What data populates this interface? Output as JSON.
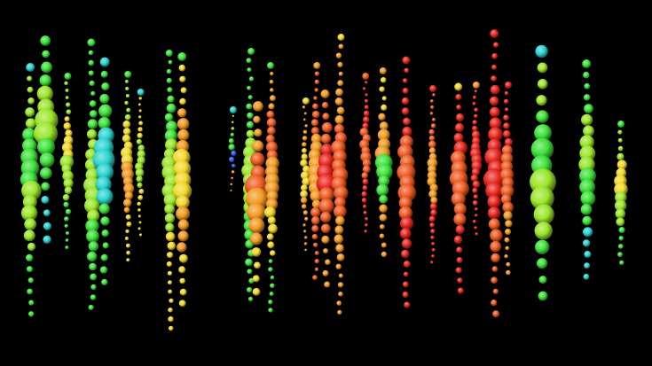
{
  "image": {
    "background": "#000000",
    "palette": {
      "cyan": "#2ad4d0",
      "green": "#3ee23a",
      "yellow_green": "#9be62a",
      "yellow": "#f2d82a",
      "orange": "#f29a22",
      "red_orange": "#ee5a22",
      "red": "#e8261e",
      "blue": "#2a5ae8"
    },
    "strings": [
      {
        "top_color": "cyan",
        "colors": [
          "yellow_green",
          "green",
          "yellow_green",
          "green"
        ]
      },
      {
        "top_color": "green",
        "colors": [
          "green",
          "yellow_green",
          "green",
          "cyan"
        ]
      },
      {
        "top_color": "green",
        "colors": [
          "yellow_green",
          "yellow",
          "yellow_green",
          "green"
        ]
      },
      {
        "top_color": "green",
        "colors": [
          "green",
          "yellow_green",
          "green"
        ]
      },
      {
        "top_color": "cyan",
        "colors": [
          "green",
          "cyan",
          "green"
        ]
      },
      {
        "top_color": "green",
        "colors": [
          "yellow_green",
          "yellow",
          "orange",
          "yellow"
        ]
      },
      {
        "top_color": "cyan",
        "colors": [
          "yellow",
          "yellow_green",
          "yellow"
        ]
      },
      {
        "top_color": "green",
        "colors": [
          "green",
          "yellow_green",
          "yellow"
        ]
      },
      {
        "top_color": "green",
        "colors": [
          "yellow",
          "orange",
          "yellow",
          "orange",
          "yellow"
        ]
      },
      {
        "top_color": "cyan",
        "colors": [
          "yellow_green",
          "green",
          "blue",
          "orange"
        ]
      },
      {
        "top_color": "green",
        "colors": [
          "green",
          "yellow_green",
          "green"
        ]
      },
      {
        "top_color": "orange",
        "colors": [
          "orange",
          "red_orange",
          "orange",
          "yellow"
        ]
      },
      {
        "top_color": "green",
        "colors": [
          "orange",
          "red_orange",
          "orange",
          "yellow",
          "green"
        ]
      },
      {
        "top_color": "yellow",
        "colors": [
          "orange",
          "yellow",
          "orange"
        ]
      },
      {
        "top_color": "orange",
        "colors": [
          "red_orange",
          "orange",
          "red_orange"
        ]
      },
      {
        "top_color": "orange",
        "colors": [
          "red_orange",
          "red",
          "red_orange",
          "orange"
        ]
      },
      {
        "top_color": "yellow",
        "colors": [
          "orange",
          "red_orange",
          "orange"
        ]
      },
      {
        "top_color": "red_orange",
        "colors": [
          "red",
          "red_orange",
          "red"
        ]
      },
      {
        "top_color": "orange",
        "colors": [
          "yellow",
          "orange",
          "green",
          "orange"
        ]
      },
      {
        "top_color": "red",
        "colors": [
          "red",
          "red_orange",
          "red"
        ]
      },
      {
        "top_color": "red",
        "colors": [
          "red_orange",
          "orange",
          "red"
        ]
      },
      {
        "top_color": "yellow",
        "colors": [
          "red",
          "red_orange",
          "red"
        ]
      },
      {
        "top_color": "orange",
        "colors": [
          "red",
          "red",
          "red"
        ]
      },
      {
        "top_color": "red",
        "colors": [
          "red",
          "red",
          "red_orange"
        ]
      },
      {
        "top_color": "red",
        "colors": [
          "red",
          "red_orange",
          "orange"
        ]
      }
    ]
  }
}
